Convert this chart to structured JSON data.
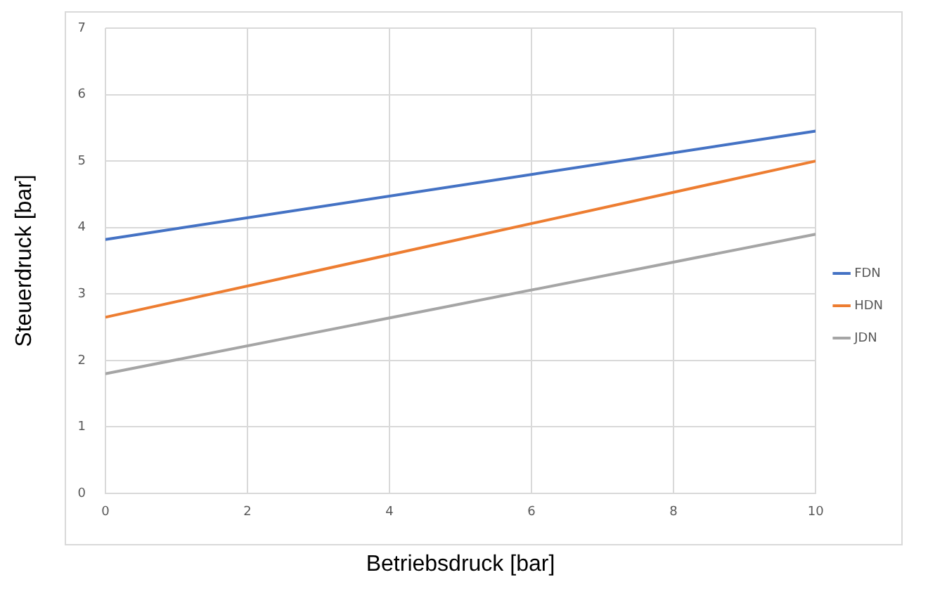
{
  "chart_data": {
    "type": "line",
    "xlabel": "Betriebsdruck [bar]",
    "ylabel": "Steuerdruck [bar]",
    "x": [
      0,
      10
    ],
    "series": [
      {
        "name": "FDN",
        "color": "#4472c4",
        "values": [
          3.82,
          5.45
        ]
      },
      {
        "name": "HDN",
        "color": "#ed7d31",
        "values": [
          2.65,
          5.0
        ]
      },
      {
        "name": "JDN",
        "color": "#a5a5a5",
        "values": [
          1.8,
          3.9
        ]
      }
    ],
    "xlim": [
      0,
      10
    ],
    "xticks": [
      0,
      2,
      4,
      6,
      8,
      10
    ],
    "ylim": [
      0,
      7
    ],
    "yticks": [
      0,
      1,
      2,
      3,
      4,
      5,
      6,
      7
    ],
    "grid": true,
    "legend": "right",
    "marker": "none"
  }
}
